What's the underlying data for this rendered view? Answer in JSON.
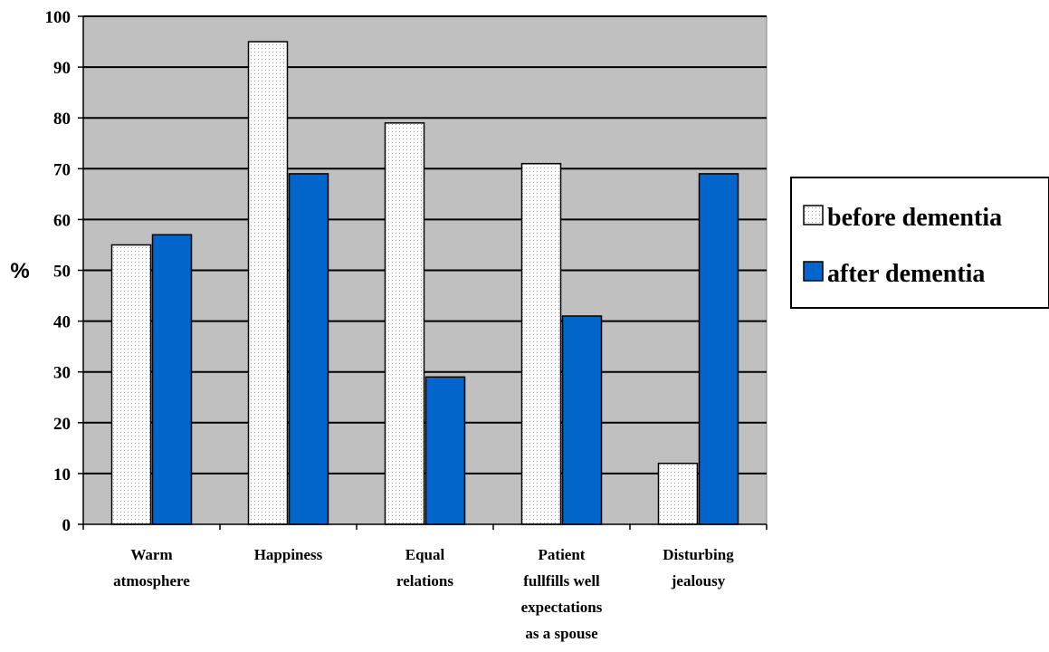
{
  "chart_data": {
    "type": "bar",
    "categories": [
      [
        "Warm",
        "atmosphere"
      ],
      [
        "Happiness"
      ],
      [
        "Equal",
        "relations"
      ],
      [
        "Patient",
        "fullfills well",
        "expectations",
        "as a spouse"
      ],
      [
        "Disturbing",
        "jealousy"
      ]
    ],
    "series": [
      {
        "name": "before dementia",
        "values": [
          55,
          95,
          79,
          71,
          12
        ]
      },
      {
        "name": "after dementia",
        "values": [
          57,
          69,
          29,
          41,
          69
        ]
      }
    ],
    "ylabel": "%",
    "ylim": [
      0,
      100
    ],
    "yticks": [
      "0",
      "10",
      "20",
      "30",
      "40",
      "50",
      "60",
      "70",
      "80",
      "90",
      "100"
    ],
    "grid": true,
    "legend_position": "right"
  },
  "colors": {
    "plot_background": "#c0c0c0",
    "before_fill": "#ffffff",
    "before_dots": "#b0b0b0",
    "after_fill": "#0066cc",
    "grid": "#000000"
  }
}
